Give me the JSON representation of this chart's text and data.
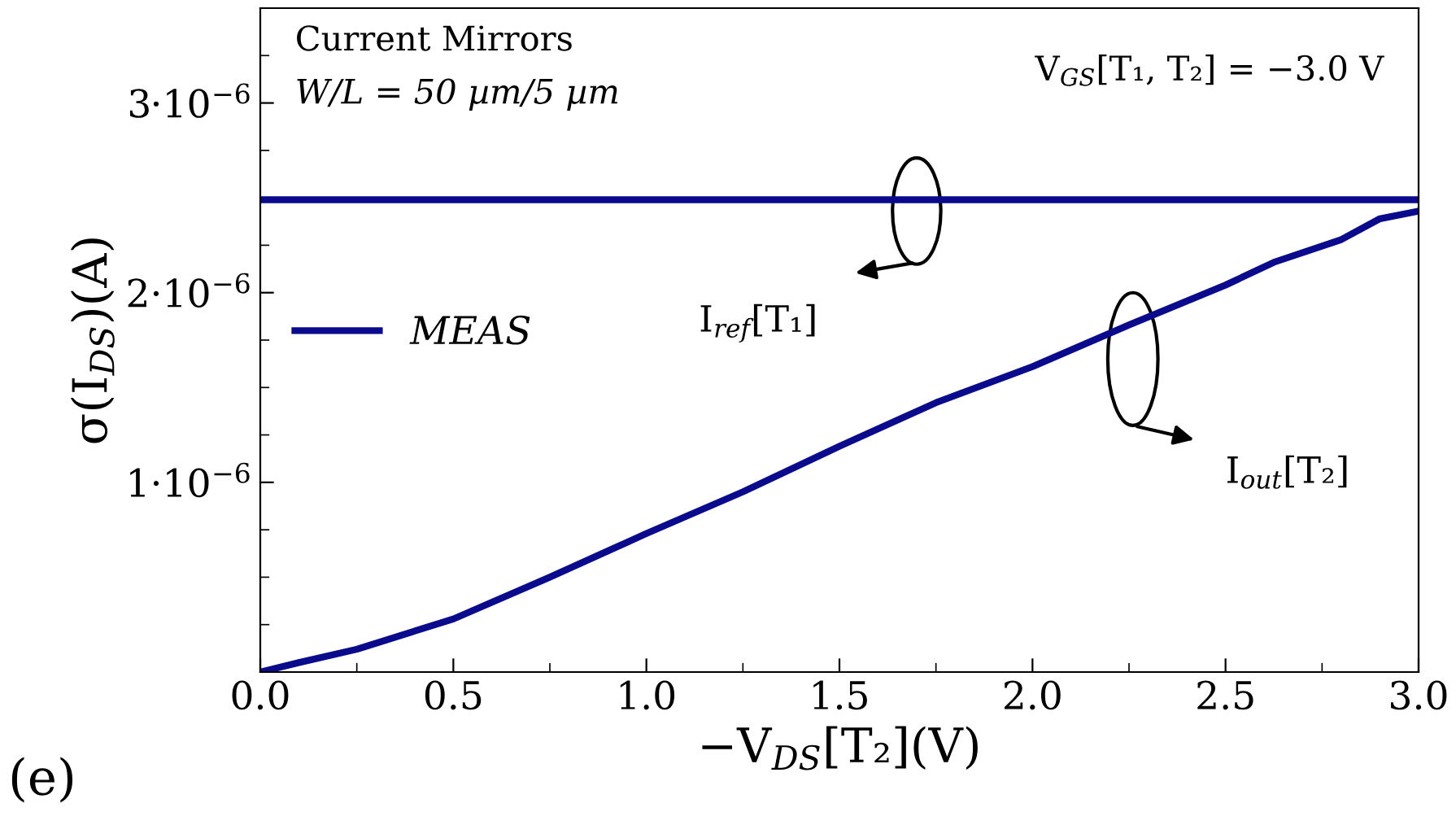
{
  "chart_data": {
    "type": "line",
    "xlabel": "−V$_{DS}$[T₂](V)",
    "ylabel": "σ(I$_{DS}$)(A)",
    "annotations": [
      "Current Mirrors",
      "W/L = 50 µm/5 µm",
      "V$_{GS}$[T₁, T₂] = −3.0 V",
      "I$_{ref}$[T₁]",
      "I$_{out}$[T₂]",
      "(e)"
    ],
    "series": [
      {
        "name": "MEAS",
        "color": "#0a0a8c",
        "x": [
          0,
          0.1,
          0.25,
          0.5,
          0.75,
          1.0,
          1.25,
          1.5,
          1.75,
          2.0,
          2.25,
          2.5,
          2.625,
          2.8,
          2.9,
          3.0
        ],
        "values": [
          0,
          5e-08,
          1.2e-07,
          2.8e-07,
          5e-07,
          7.3e-07,
          9.5e-07,
          1.19e-06,
          1.42e-06,
          1.61e-06,
          1.83e-06,
          2.04e-06,
          2.16e-06,
          2.28e-06,
          2.39e-06,
          2.43e-06
        ]
      },
      {
        "color": "#0a0a8c",
        "x": [
          0,
          3.0
        ],
        "values": [
          2.49e-06,
          2.49e-06
        ]
      }
    ],
    "xlim": [
      0,
      3.0
    ],
    "xticks": [
      {
        "value": 0,
        "label": "0.0"
      },
      0.5,
      {
        "value": 1,
        "label": "1.0"
      },
      1.5,
      {
        "value": 2,
        "label": "2.0"
      },
      2.5,
      {
        "value": 3,
        "label": "3.0"
      }
    ],
    "ylim": [
      0,
      3.5e-06
    ],
    "yticks": [
      {
        "value": 1e-06,
        "label": "1·10$^{−6}$"
      },
      {
        "value": 2e-06,
        "label": "2·10$^{−6}$"
      },
      {
        "value": 3e-06,
        "label": "3·10$^{−6}$"
      }
    ],
    "legend": "center left",
    "grid": false,
    "marker": "none",
    "line_style": "solid"
  }
}
